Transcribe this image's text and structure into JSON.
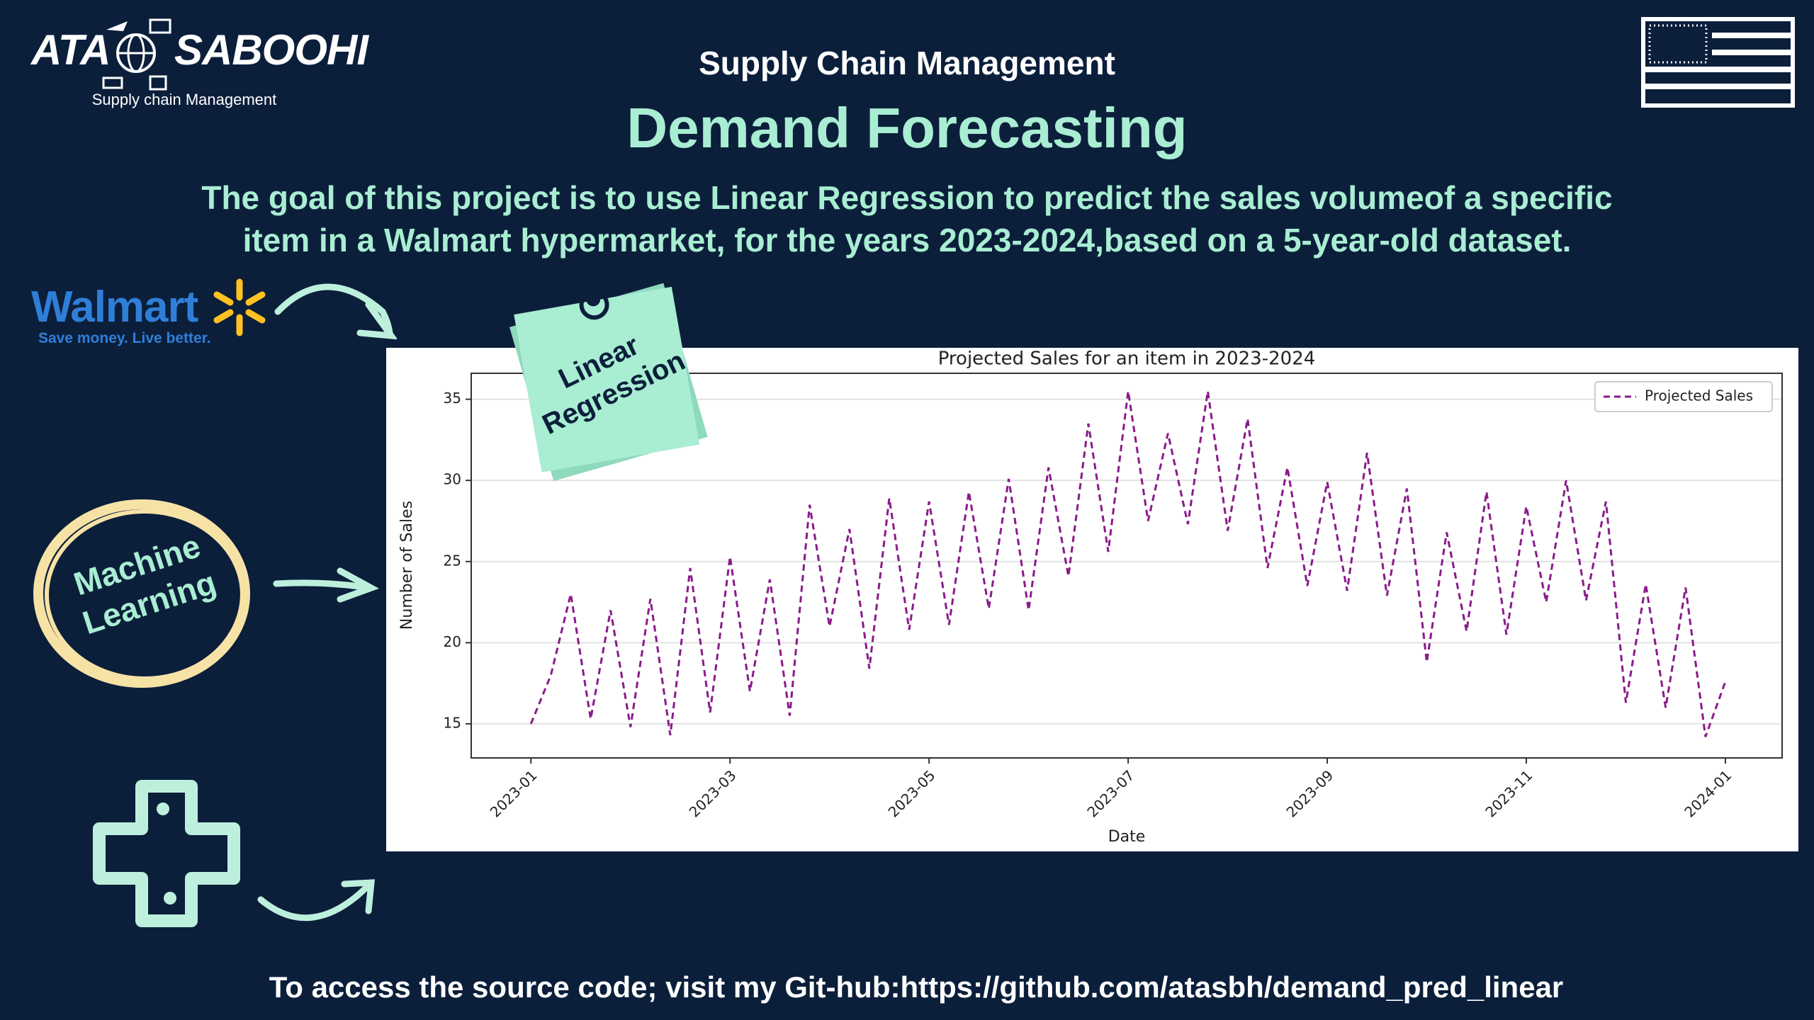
{
  "header": {
    "logo_name_1": "ATA",
    "logo_name_2": "SABOOHI",
    "logo_tagline": "Supply chain Management",
    "subtitle": "Supply Chain Management",
    "title": "Demand Forecasting"
  },
  "description": {
    "lines": [
      "The goal of this project is to use Linear Regression to predict the sales volumeof a specific",
      "item in a Walmart hypermarket, for the years 2023-2024,based on  a 5-year-old dataset."
    ]
  },
  "walmart": {
    "name": "Walmart",
    "slogan": "Save money. Live better."
  },
  "note": {
    "lines": [
      "Linear",
      "Regression"
    ]
  },
  "badge": {
    "lines": [
      "Machine",
      "Learning"
    ]
  },
  "footer": {
    "text": "To access the source code; visit my Git-hub:https://github.com/atasbh/demand_pred_linear"
  },
  "chart_data": {
    "type": "line",
    "title": "Projected Sales for an item in 2023-2024",
    "x_label": "Date",
    "y_label": "Number of Sales",
    "x": [
      0,
      0.2,
      0.4,
      0.6,
      0.8,
      1,
      1.2,
      1.4,
      1.6,
      1.8,
      2,
      2.2,
      2.4,
      2.6,
      2.8,
      3,
      3.2,
      3.4,
      3.6,
      3.8,
      4,
      4.2,
      4.4,
      4.6,
      4.8,
      5,
      5.2,
      5.4,
      5.6,
      5.8,
      6,
      6.2,
      6.4,
      6.6,
      6.8,
      7,
      7.2,
      7.4,
      7.6,
      7.8,
      8,
      8.2,
      8.4,
      8.6,
      8.8,
      9,
      9.2,
      9.4,
      9.6,
      9.8,
      10,
      10.2,
      10.4,
      10.6,
      10.8,
      11,
      11.2,
      11.4,
      11.6,
      11.8,
      12
    ],
    "series": [
      {
        "name": "Projected Sales",
        "color": "#8b1a8b",
        "values": [
          15,
          18,
          23,
          15.3,
          22,
          14.8,
          22.7,
          14.3,
          24.6,
          15.7,
          25.3,
          17,
          23.9,
          15.5,
          28.5,
          21,
          27,
          18.4,
          28.9,
          20.8,
          28.7,
          21.1,
          29.3,
          22.1,
          30.1,
          22,
          30.8,
          24.1,
          33.5,
          25.6,
          35.5,
          27.5,
          32.9,
          27.3,
          35.5,
          26.9,
          33.8,
          24.6,
          30.8,
          23.5,
          29.9,
          23.2,
          31.7,
          22.9,
          29.5,
          18.8,
          26.8,
          20.7,
          29.3,
          20.5,
          28.4,
          22.5,
          30,
          22.6,
          28.7,
          16.3,
          23.6,
          16,
          23.4,
          14.2,
          17.6
        ]
      }
    ],
    "xlim": [
      -0.6,
      12.57
    ],
    "xticks": [
      {
        "value": 0,
        "label": "2023-01"
      },
      {
        "value": 2,
        "label": "2023-03"
      },
      {
        "value": 4,
        "label": "2023-05"
      },
      {
        "value": 6,
        "label": "2023-07"
      },
      {
        "value": 8,
        "label": "2023-09"
      },
      {
        "value": 10,
        "label": "2023-11"
      },
      {
        "value": 12,
        "label": "2024-01"
      }
    ],
    "ylim": [
      12.9,
      36.6
    ],
    "yticks": [
      15,
      20,
      25,
      30,
      35
    ],
    "grid": true,
    "legend": "upper right",
    "dashed": true
  }
}
